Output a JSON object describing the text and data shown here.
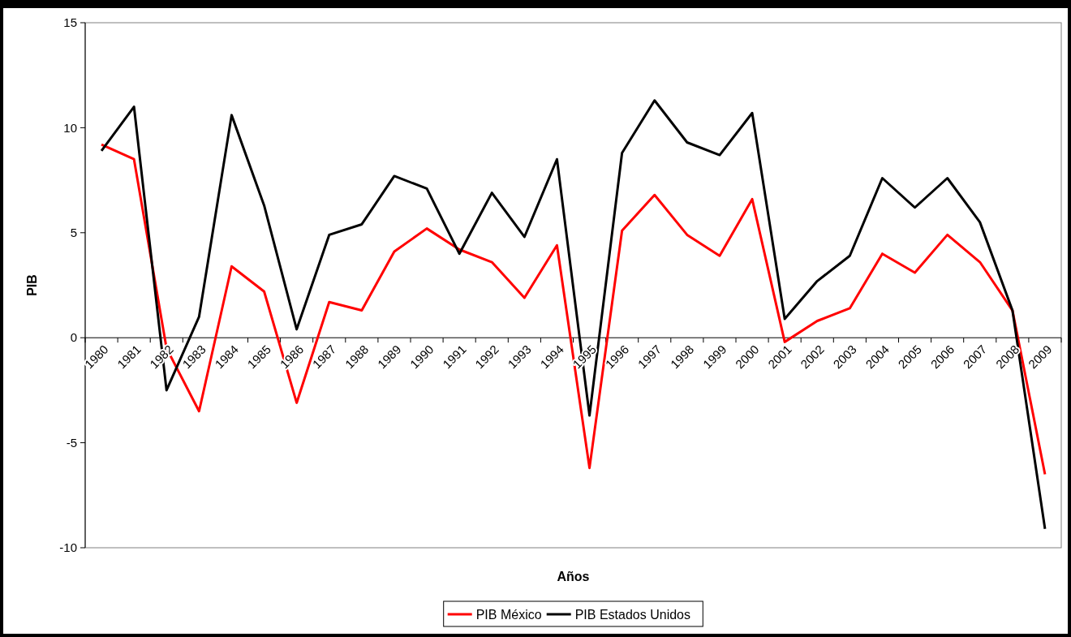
{
  "chart_data": {
    "type": "line",
    "xlabel": "Años",
    "ylabel": "PIB",
    "categories": [
      "1980",
      "1981",
      "1982",
      "1983",
      "1984",
      "1985",
      "1986",
      "1987",
      "1988",
      "1989",
      "1990",
      "1991",
      "1992",
      "1993",
      "1994",
      "1995",
      "1996",
      "1997",
      "1998",
      "1999",
      "2000",
      "2001",
      "2002",
      "2003",
      "2004",
      "2005",
      "2006",
      "2007",
      "2008",
      "2009"
    ],
    "series": [
      {
        "name": "PIB México",
        "color": "#ff0000",
        "values": [
          9.2,
          8.5,
          -0.5,
          -3.5,
          3.4,
          2.2,
          -3.1,
          1.7,
          1.3,
          4.1,
          5.2,
          4.2,
          3.6,
          1.9,
          4.4,
          -6.2,
          5.1,
          6.8,
          4.9,
          3.9,
          6.6,
          -0.2,
          0.8,
          1.4,
          4.0,
          3.1,
          4.9,
          3.6,
          1.3,
          -6.5
        ]
      },
      {
        "name": "PIB Estados Unidos",
        "color": "#000000",
        "values": [
          8.9,
          11.0,
          -2.5,
          1.0,
          10.6,
          6.3,
          0.4,
          4.9,
          5.4,
          7.7,
          7.1,
          4.0,
          6.9,
          4.8,
          8.5,
          -3.7,
          8.8,
          11.3,
          9.3,
          8.7,
          10.7,
          0.9,
          2.7,
          3.9,
          7.6,
          6.2,
          7.6,
          5.5,
          1.3,
          -9.1
        ]
      }
    ],
    "ylim": [
      -10,
      15
    ],
    "yticks": [
      -10,
      -5,
      0,
      5,
      10,
      15
    ],
    "grid": false,
    "legend": "bottom",
    "marker": "none",
    "line_style": "solid"
  }
}
